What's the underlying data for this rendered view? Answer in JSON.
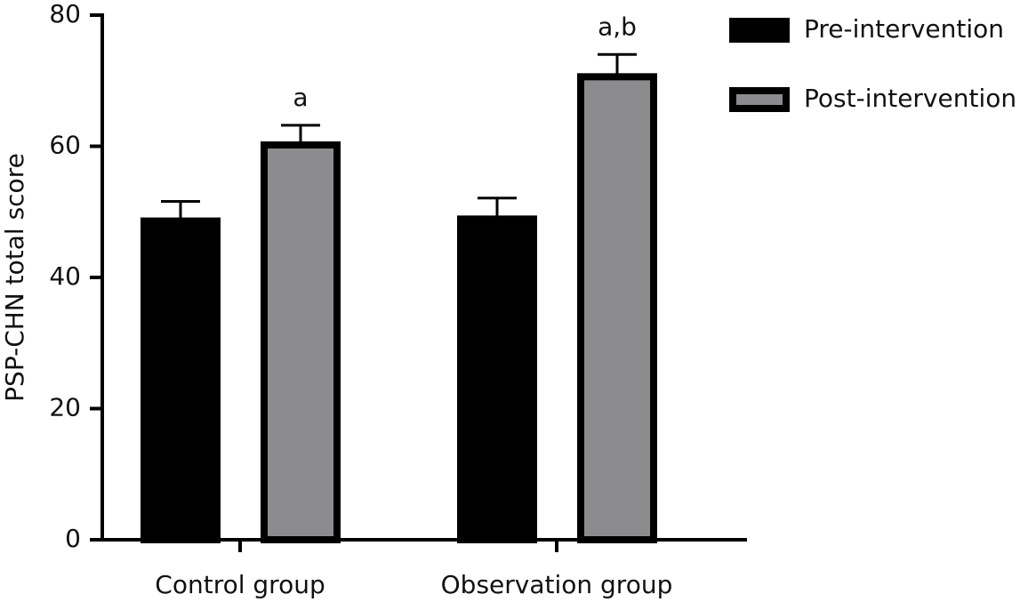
{
  "chart_data": {
    "type": "bar",
    "y_label": "PSP-CHN total score",
    "categories": [
      "Control group",
      "Observation group"
    ],
    "series": [
      {
        "name": "Pre-intervention",
        "color": "#000000",
        "values": [
          48.6,
          48.9
        ],
        "errors": [
          3.0,
          3.2
        ]
      },
      {
        "name": "Post-intervention",
        "color": "#8c8c8f",
        "values": [
          60.2,
          70.6
        ],
        "errors": [
          3.0,
          3.4
        ],
        "annotations": [
          "a",
          "a,b"
        ]
      }
    ],
    "ylim": [
      0,
      80
    ],
    "yticks": [
      0,
      20,
      40,
      60,
      80
    ],
    "legend": "top-right"
  }
}
